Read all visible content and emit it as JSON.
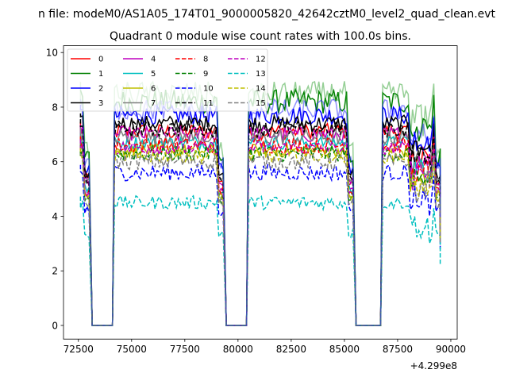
{
  "suptitle": "n file: modeM0/AS1A05_174T01_9000005820_42642cztM0_level2_quad_clean.evt",
  "chart_data": {
    "type": "line",
    "title": "Quadrant 0 module wise count rates with 100.0s bins.",
    "xlabel": "",
    "ylabel": "",
    "x_offset_label": "+4.299e8",
    "xlim": [
      71800,
      90300
    ],
    "ylim": [
      -0.5,
      10.25
    ],
    "xticks": [
      72500,
      75000,
      77500,
      80000,
      82500,
      85000,
      87500,
      90000
    ],
    "xtick_labels": [
      "72500",
      "75000",
      "77500",
      "80000",
      "82500",
      "85000",
      "87500",
      "90000"
    ],
    "yticks": [
      0,
      2,
      4,
      6,
      8,
      10
    ],
    "ytick_labels": [
      "0",
      "2",
      "4",
      "6",
      "8",
      "10"
    ],
    "grid": false,
    "legend_position": "top-left",
    "legend_columns": 4,
    "segments": [
      [
        72600,
        73000
      ],
      [
        74200,
        79300
      ],
      [
        80500,
        85400
      ],
      [
        86800,
        89500
      ]
    ],
    "gaps": [
      [
        73000,
        74200
      ],
      [
        79300,
        80500
      ],
      [
        85400,
        86800
      ]
    ],
    "bin_seconds": 100,
    "series": [
      {
        "name": "0",
        "color": "#ff0000",
        "dash": "solid",
        "level": 7.1,
        "amplitude": 0.3
      },
      {
        "name": "1",
        "color": "#008000",
        "dash": "solid",
        "level": 8.2,
        "amplitude": 0.45
      },
      {
        "name": "2",
        "color": "#0000ff",
        "dash": "solid",
        "level": 7.7,
        "amplitude": 0.35
      },
      {
        "name": "3",
        "color": "#000000",
        "dash": "solid",
        "level": 7.4,
        "amplitude": 0.3
      },
      {
        "name": "4",
        "color": "#bf00bf",
        "dash": "solid",
        "level": 7.0,
        "amplitude": 0.3
      },
      {
        "name": "5",
        "color": "#00bfbf",
        "dash": "solid",
        "level": 6.7,
        "amplitude": 0.25
      },
      {
        "name": "6",
        "color": "#bfbf00",
        "dash": "solid",
        "level": 6.4,
        "amplitude": 0.25
      },
      {
        "name": "7",
        "color": "#808080",
        "dash": "solid",
        "level": 6.9,
        "amplitude": 0.3
      },
      {
        "name": "8",
        "color": "#ff0000",
        "dash": "dashed",
        "level": 6.6,
        "amplitude": 0.3
      },
      {
        "name": "9",
        "color": "#008000",
        "dash": "dashed",
        "level": 6.3,
        "amplitude": 0.3
      },
      {
        "name": "10",
        "color": "#0000ff",
        "dash": "dashed",
        "level": 5.6,
        "amplitude": 0.3
      },
      {
        "name": "11",
        "color": "#000000",
        "dash": "dashed",
        "level": 7.2,
        "amplitude": 0.3
      },
      {
        "name": "12",
        "color": "#bf00bf",
        "dash": "dashed",
        "level": 6.5,
        "amplitude": 0.25
      },
      {
        "name": "13",
        "color": "#00bfbf",
        "dash": "dashed",
        "level": 4.5,
        "amplitude": 0.25
      },
      {
        "name": "14",
        "color": "#bfbf00",
        "dash": "dashed",
        "level": 6.2,
        "amplitude": 0.25
      },
      {
        "name": "15",
        "color": "#808080",
        "dash": "dashed",
        "level": 6.0,
        "amplitude": 0.3
      },
      {
        "name": "",
        "color": "#2ca02c",
        "dash": "solid",
        "level": 8.5,
        "amplitude": 0.45,
        "alpha": 0.5
      },
      {
        "name": "",
        "color": "#1f1fff",
        "dash": "solid",
        "level": 7.9,
        "amplitude": 0.4,
        "alpha": 0.5
      }
    ]
  }
}
